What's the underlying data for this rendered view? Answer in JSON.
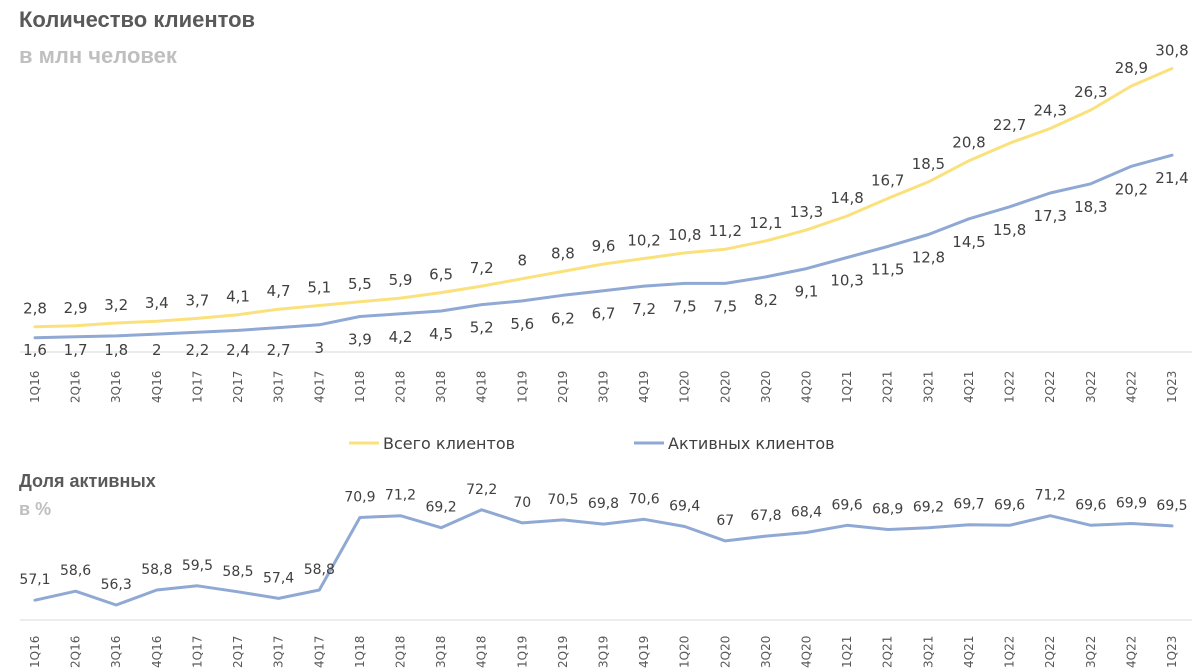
{
  "header": {
    "title": "Количество клиентов",
    "subtitle": "в млн человек"
  },
  "section2": {
    "title": "Доля активных",
    "subtitle": "в %"
  },
  "colors": {
    "total": "#fbe17b",
    "active": "#8fa9d4",
    "share": "#8fa9d4"
  },
  "chart_data": [
    {
      "type": "line",
      "title": "Количество клиентов",
      "subtitle": "в млн человек",
      "categories": [
        "1Q16",
        "2Q16",
        "3Q16",
        "4Q16",
        "1Q17",
        "2Q17",
        "3Q17",
        "4Q17",
        "1Q18",
        "2Q18",
        "3Q18",
        "4Q18",
        "1Q19",
        "2Q19",
        "3Q19",
        "4Q19",
        "1Q20",
        "2Q20",
        "3Q20",
        "4Q20",
        "1Q21",
        "2Q21",
        "3Q21",
        "4Q21",
        "1Q22",
        "2Q22",
        "3Q22",
        "4Q22",
        "1Q23"
      ],
      "series": [
        {
          "name": "Всего клиентов",
          "values": [
            2.8,
            2.9,
            3.2,
            3.4,
            3.7,
            4.1,
            4.7,
            5.1,
            5.5,
            5.9,
            6.5,
            7.2,
            8,
            8.8,
            9.6,
            10.2,
            10.8,
            11.2,
            12.1,
            13.3,
            14.8,
            16.7,
            18.5,
            20.8,
            22.7,
            24.3,
            26.3,
            28.9,
            30.8
          ],
          "labels": [
            "2,8",
            "2,9",
            "3,2",
            "3,4",
            "3,7",
            "4,1",
            "4,7",
            "5,1",
            "5,5",
            "5,9",
            "6,5",
            "7,2",
            "8",
            "8,8",
            "9,6",
            "10,2",
            "10,8",
            "11,2",
            "12,1",
            "13,3",
            "14,8",
            "16,7",
            "18,5",
            "20,8",
            "22,7",
            "24,3",
            "26,3",
            "28,9",
            "30,8"
          ]
        },
        {
          "name": "Активных клиентов",
          "values": [
            1.6,
            1.7,
            1.8,
            2,
            2.2,
            2.4,
            2.7,
            3,
            3.9,
            4.2,
            4.5,
            5.2,
            5.6,
            6.2,
            6.7,
            7.2,
            7.5,
            7.5,
            8.2,
            9.1,
            10.3,
            11.5,
            12.8,
            14.5,
            15.8,
            17.3,
            18.3,
            20.2,
            21.4
          ],
          "labels": [
            "1,6",
            "1,7",
            "1,8",
            "2",
            "2,2",
            "2,4",
            "2,7",
            "3",
            "3,9",
            "4,2",
            "4,5",
            "5,2",
            "5,6",
            "6,2",
            "6,7",
            "7,2",
            "7,5",
            "7,5",
            "8,2",
            "9,1",
            "10,3",
            "11,5",
            "12,8",
            "14,5",
            "15,8",
            "17,3",
            "18,3",
            "20,2",
            "21,4"
          ]
        }
      ],
      "ylim": [
        0,
        33
      ],
      "grid": false,
      "legend": "bottom"
    },
    {
      "type": "line",
      "title": "Доля активных",
      "subtitle": "в %",
      "categories": [
        "1Q16",
        "2Q16",
        "3Q16",
        "4Q16",
        "1Q17",
        "2Q17",
        "3Q17",
        "4Q17",
        "1Q18",
        "2Q18",
        "3Q18",
        "4Q18",
        "1Q19",
        "2Q19",
        "3Q19",
        "4Q19",
        "1Q20",
        "2Q20",
        "3Q20",
        "4Q20",
        "1Q21",
        "2Q21",
        "3Q21",
        "4Q21",
        "1Q22",
        "2Q22",
        "3Q22",
        "4Q22",
        "1Q23"
      ],
      "series": [
        {
          "name": "Доля активных",
          "values": [
            57.1,
            58.6,
            56.3,
            58.8,
            59.5,
            58.5,
            57.4,
            58.8,
            70.9,
            71.2,
            69.2,
            72.2,
            70,
            70.5,
            69.8,
            70.6,
            69.4,
            67,
            67.8,
            68.4,
            69.6,
            68.9,
            69.2,
            69.7,
            69.6,
            71.2,
            69.6,
            69.9,
            69.5
          ],
          "labels": [
            "57,1",
            "58,6",
            "56,3",
            "58,8",
            "59,5",
            "58,5",
            "57,4",
            "58,8",
            "70,9",
            "71,2",
            "69,2",
            "72,2",
            "70",
            "70,5",
            "69,8",
            "70,6",
            "69,4",
            "67",
            "67,8",
            "68,4",
            "69,6",
            "68,9",
            "69,2",
            "69,7",
            "69,6",
            "71,2",
            "69,6",
            "69,9",
            "69,5"
          ]
        }
      ],
      "ylim": [
        50,
        75
      ],
      "grid": false,
      "legend": "none"
    }
  ]
}
